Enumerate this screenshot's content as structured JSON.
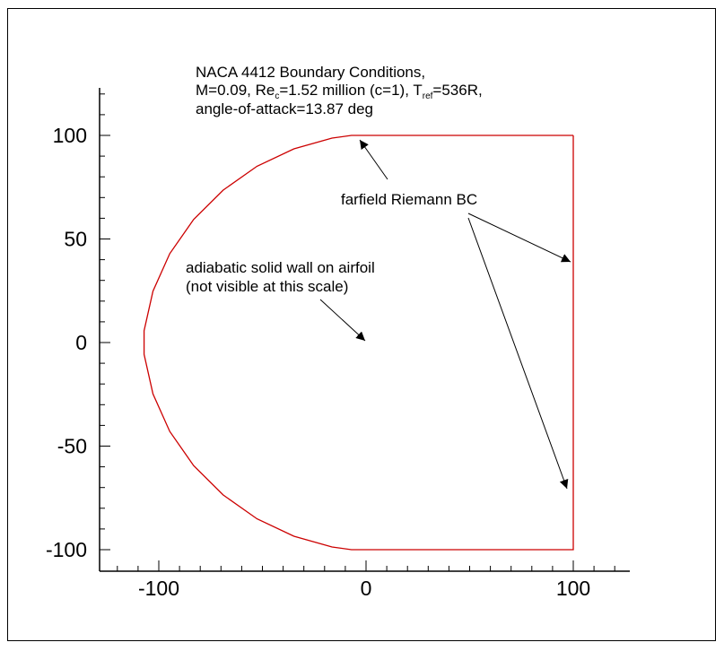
{
  "title": {
    "line1": "NACA 4412 Boundary Conditions,",
    "line2_a": "M=0.09, Re",
    "line2_sub_a": "c",
    "line2_b": "=1.52 million (c=1), T",
    "line2_sub_b": "ref",
    "line2_c": "=536R,",
    "line3": "angle-of-attack=13.87 deg"
  },
  "annotations": {
    "farfield": "farfield Riemann BC",
    "wall_line1": "adiabatic solid wall on airfoil",
    "wall_line2": "(not visible at this scale)"
  },
  "colors": {
    "boundary": "#cc0000",
    "axes": "#000000"
  },
  "chart_data": {
    "type": "line",
    "xlim": [
      -130,
      125
    ],
    "ylim": [
      -110,
      123
    ],
    "x_ticks": [
      -100,
      0,
      100
    ],
    "y_ticks": [
      100,
      50,
      0,
      -50,
      -100
    ],
    "x_tick_labels": [
      "-100",
      "0",
      "100"
    ],
    "y_tick_labels": [
      "100",
      "50",
      "0",
      "-50",
      "-100"
    ],
    "series": [
      {
        "x": [
          100,
          -7,
          -16.4,
          -34.8,
          -52.6,
          -68.9,
          -83.2,
          -94.7,
          -102.8,
          -107.1,
          -107.1,
          -102.8,
          -94.7,
          -83.2,
          -68.9,
          -52.6,
          -34.8,
          -16.4,
          -7,
          100,
          100
        ],
        "y": [
          100,
          100,
          98.7,
          93.5,
          85.1,
          73.6,
          59.4,
          42.9,
          24.8,
          5.7,
          -5.7,
          -24.8,
          -42.9,
          -59.4,
          -73.6,
          -85.1,
          -93.5,
          -98.7,
          -100,
          -100,
          100
        ]
      }
    ]
  }
}
